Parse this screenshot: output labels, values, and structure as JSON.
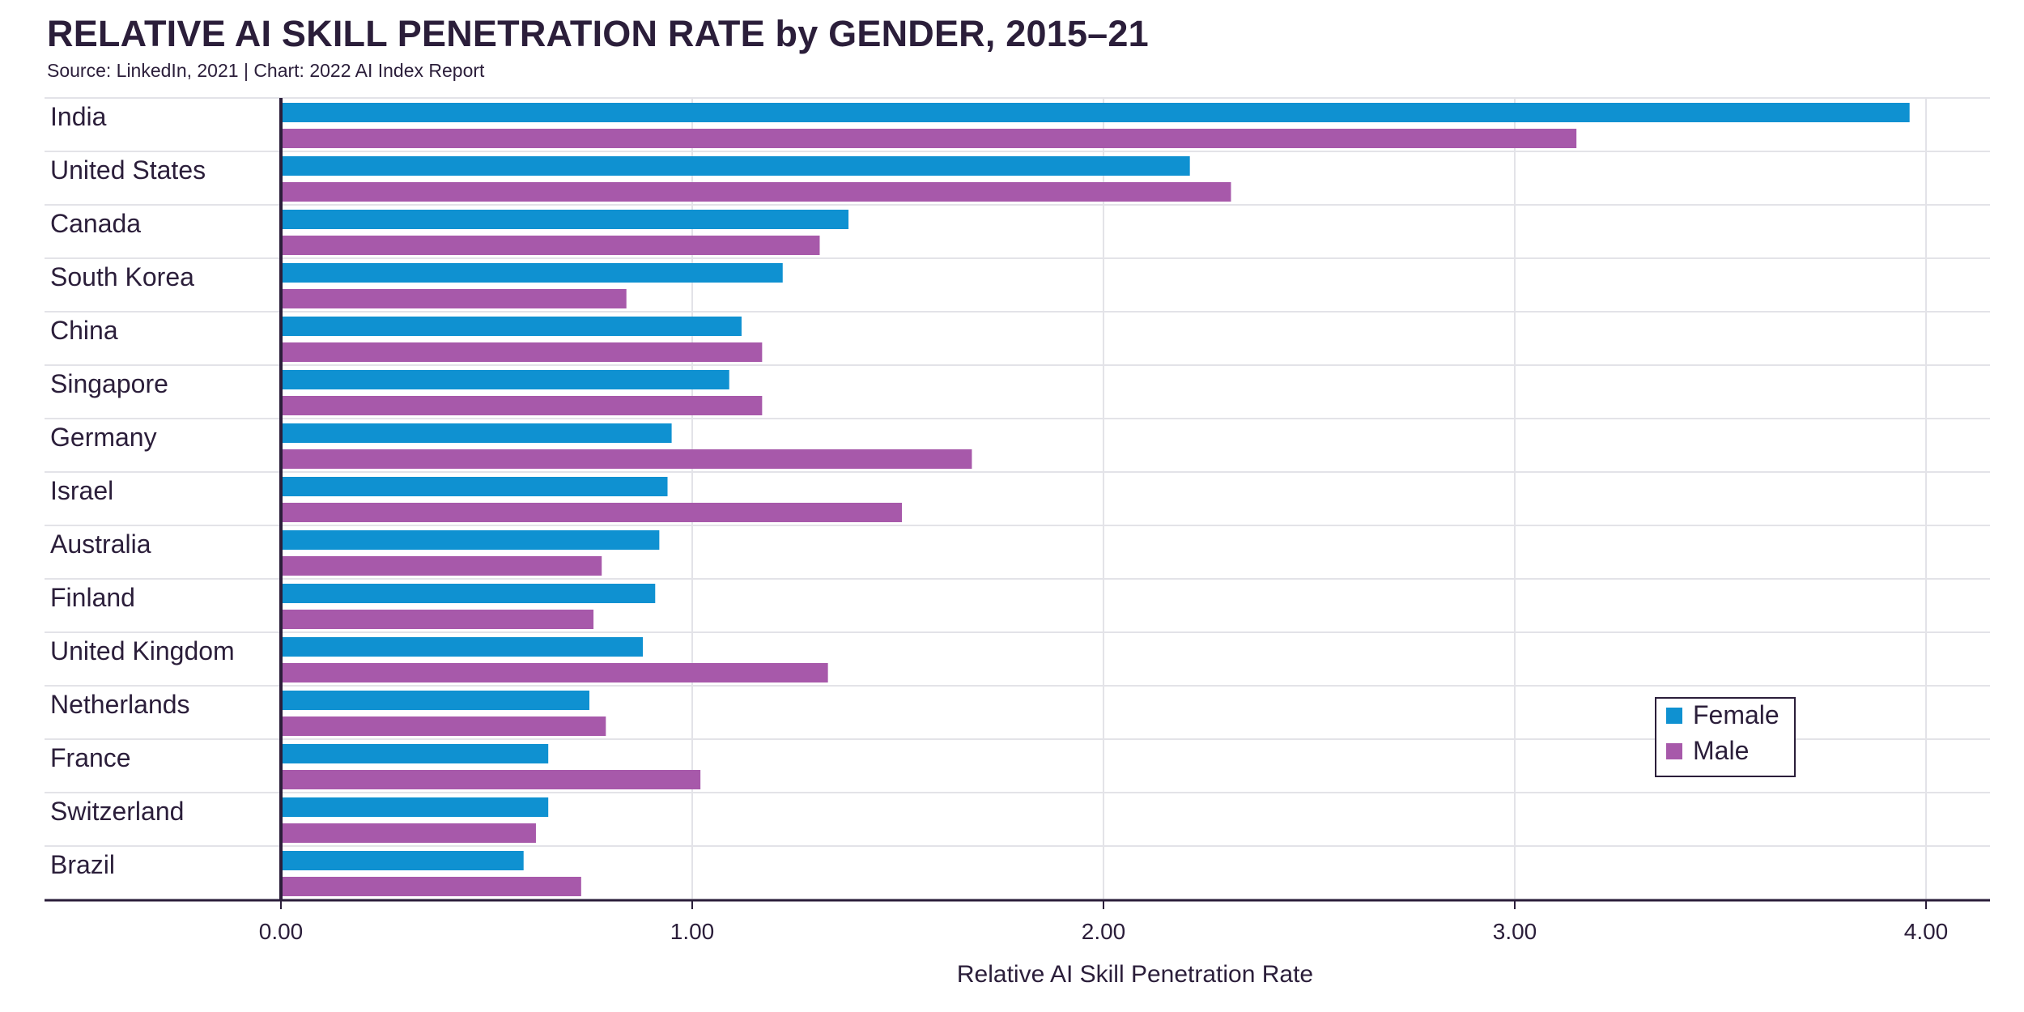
{
  "header": {
    "title": "RELATIVE AI SKILL PENETRATION RATE by GENDER, 2015–21",
    "subtitle": "Source: LinkedIn, 2021 | Chart: 2022 AI Index Report"
  },
  "colors": {
    "female": "#0f91d1",
    "male": "#a759aa",
    "text": "#2b1e3a",
    "grid": "#e3e3e8"
  },
  "chart_data": {
    "type": "bar",
    "orientation": "horizontal",
    "categories": [
      "India",
      "United States",
      "Canada",
      "South Korea",
      "China",
      "Singapore",
      "Germany",
      "Israel",
      "Australia",
      "Finland",
      "United Kingdom",
      "Netherlands",
      "France",
      "Switzerland",
      "Brazil"
    ],
    "series": [
      {
        "name": "Female",
        "color": "#0f91d1",
        "values": [
          3.96,
          2.21,
          1.38,
          1.22,
          1.12,
          1.09,
          0.95,
          0.94,
          0.92,
          0.91,
          0.88,
          0.75,
          0.65,
          0.65,
          0.59
        ]
      },
      {
        "name": "Male",
        "color": "#a759aa",
        "values": [
          3.15,
          2.31,
          1.31,
          0.84,
          1.17,
          1.17,
          1.68,
          1.51,
          0.78,
          0.76,
          1.33,
          0.79,
          1.02,
          0.62,
          0.73
        ]
      }
    ],
    "xlabel": "Relative AI Skill Penetration Rate",
    "xlim": [
      0,
      4.0
    ],
    "xticks": [
      "0.00",
      "1.00",
      "2.00",
      "3.00",
      "4.00"
    ],
    "grid": true,
    "legend_position": "bottom-right"
  }
}
